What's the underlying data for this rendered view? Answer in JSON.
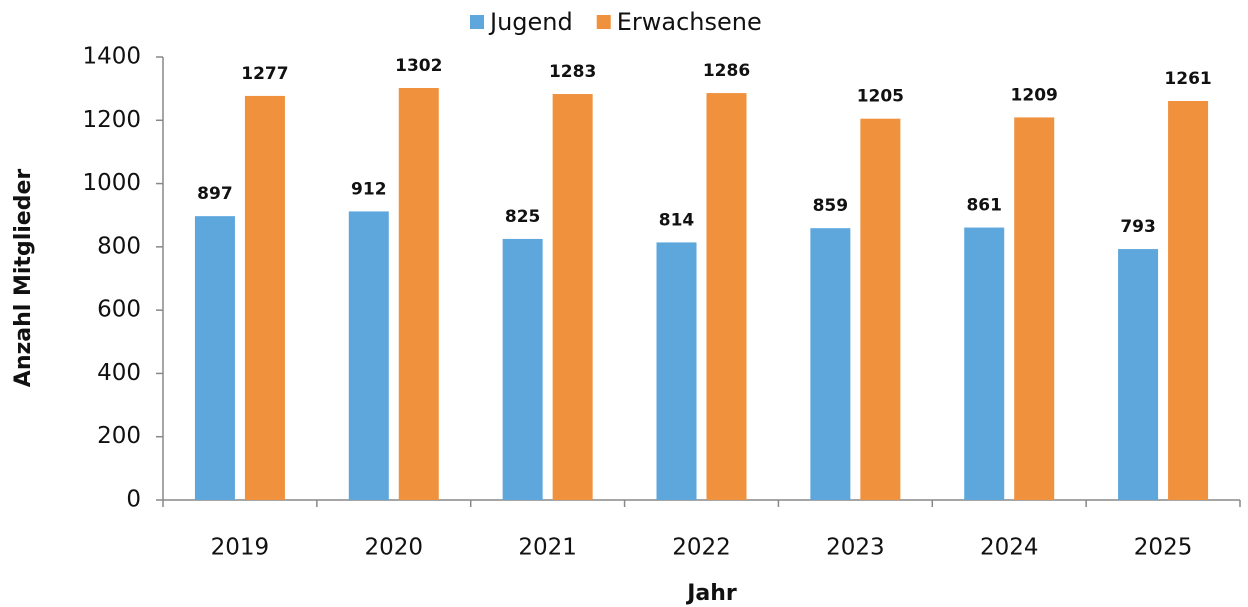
{
  "chart_data": {
    "type": "bar",
    "categories": [
      "2019",
      "2020",
      "2021",
      "2022",
      "2023",
      "2024",
      "2025"
    ],
    "series": [
      {
        "name": "Jugend",
        "color": "#5ea7dd",
        "values": [
          897,
          912,
          825,
          814,
          859,
          861,
          793
        ]
      },
      {
        "name": "Erwachsene",
        "color": "#f0913e",
        "values": [
          1277,
          1302,
          1283,
          1286,
          1205,
          1209,
          1261
        ]
      }
    ],
    "xlabel": "Jahr",
    "ylabel": "Anzahl Mitglieder",
    "ylim": [
      0,
      1400
    ],
    "yticks": [
      0,
      200,
      400,
      600,
      800,
      1000,
      1200,
      1400
    ],
    "grid": false,
    "legend": "top"
  }
}
